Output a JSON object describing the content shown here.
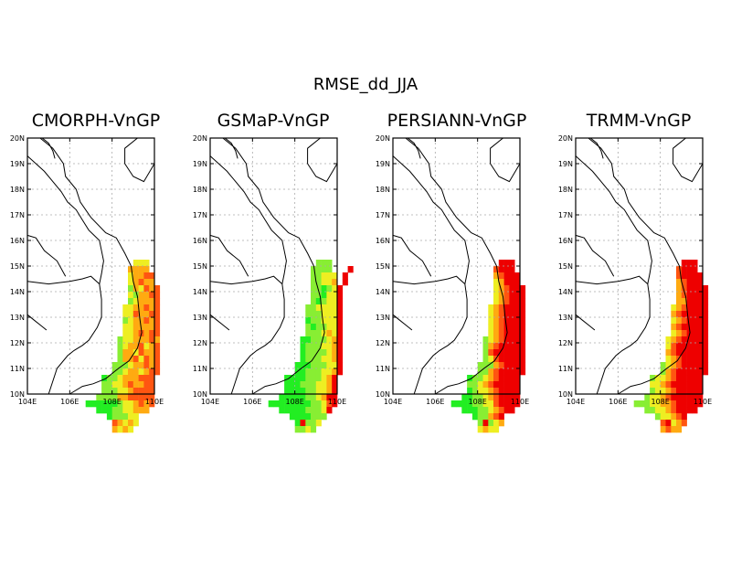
{
  "figure": {
    "title": "RMSE_dd_JJA"
  },
  "axes": {
    "x_ticks": [
      "104E",
      "106E",
      "108E",
      "110E"
    ],
    "y_ticks": [
      "10N",
      "11N",
      "12N",
      "13N",
      "14N",
      "15N",
      "16N",
      "17N",
      "18N",
      "19N",
      "20N"
    ],
    "lon_range": [
      104,
      110
    ],
    "lat_range": [
      10,
      20
    ],
    "grid": "dotted gray"
  },
  "colors": {
    "c1": "#22ee22",
    "c2": "#88ee33",
    "c3": "#eeee22",
    "c4": "#ffaa11",
    "c5": "#ff5511",
    "c6": "#ee0000"
  },
  "panels": [
    {
      "title": "CMORPH-VnGP",
      "rows": [
        "............333.......",
        "...........4444.......",
        "...........34455......",
        "...........34544......",
        "...........243545.....",
        "...........324455.....",
        "...........234445.....",
        "..........3344545.....",
        "..........3354455.....",
        "..........2344545.....",
        "..........3344445.....",
        "..........3345455.....",
        ".........23344454.....",
        ".........23445345.....",
        ".........24435445.....",
        ".........24453545.....",
        "........222344545.....",
        "........223443455.....",
        "......1223444555......",
        "......2233454455......",
        "......2223345555......",
        ".....22224455555......",
        "...1111112334545......",
        ".....1112233444.......",
        ".......122233.........",
        "........54343.........",
        "........4343.........."
      ]
    },
    {
      "title": "GSMaP-VnGP",
      "rows": [
        "............222.......",
        "...........2222...6...",
        "...........22333.6....",
        "...........22334.6....",
        "...........221236.....",
        "...........221336.....",
        "...........212336.....",
        "..........2233336.....",
        "..........2223336.....",
        "..........1223336.....",
        "..........2122336.....",
        "..........2223436.....",
        ".........11222346.....",
        ".........12223346.....",
        ".........12222346.....",
        ".........12223346.....",
        "........111222336.....",
        "........112223346.....",
        "......1111222346......",
        "......1112223346......",
        "......1111223346......",
        ".....11111223466......",
        "...1111111122356......",
        ".....1111122236.......",
        ".......1111222........",
        "........16223.........",
        "........2232.........."
      ]
    },
    {
      "title": "PERSIANN-VnGP",
      "rows": [
        "............666.......",
        "...........5666.......",
        "...........45666......",
        "...........34666......",
        "...........345666.....",
        "...........345666.....",
        "...........345666.....",
        "..........3456666.....",
        "..........3456666.....",
        "..........3456666.....",
        "..........3456666.....",
        "..........3456666.....",
        ".........23456666.....",
        ".........24566666.....",
        ".........25666666.....",
        ".........23566666.....",
        "........222456666.....",
        "........224566666.....",
        "......1223456666......",
        "......2234566666......",
        "......1233456666......",
        ".....11223456666......",
        "...1111223356666......",
        ".....1112234566.......",
        ".......122456.........",
        "........26234.........",
        "........3433.........."
      ]
    },
    {
      "title": "TRMM-VnGP",
      "rows": [
        "............666.......",
        "...........5666.......",
        "...........56666......",
        "...........45666......",
        "...........456666.....",
        "...........456666.....",
        "...........446666.....",
        "..........3456666.....",
        "..........4566666.....",
        "..........3456666.....",
        "..........4566666.....",
        "..........3456666.....",
        ".........34566666.....",
        ".........35666666.....",
        ".........45666666.....",
        ".........34566666.....",
        "........234566666.....",
        "........245666666.....",
        "......2334566666......",
        "......3345666666......",
        "......2334566666......",
        ".....23345666666......",
        "...2223344566666......",
        ".....2233456666.......",
        ".......233456.........",
        "........56345.........",
        "........4544.........."
      ]
    }
  ]
}
